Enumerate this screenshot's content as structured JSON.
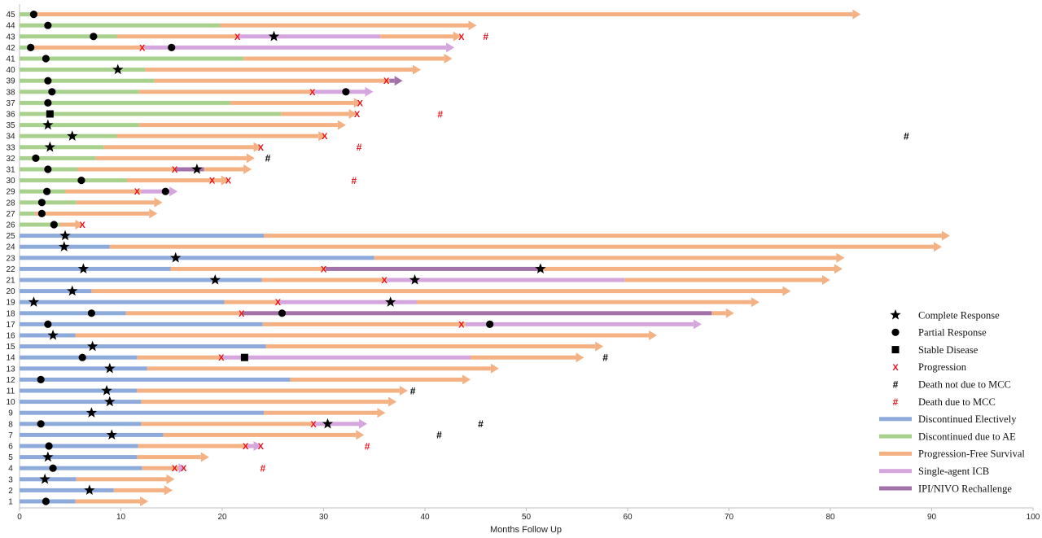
{
  "chart_data": {
    "type": "swimmer",
    "xlabel": "Months Follow Up",
    "xlim": [
      0,
      100
    ],
    "xticks": [
      0,
      10,
      20,
      30,
      40,
      50,
      60,
      70,
      80,
      90,
      100
    ],
    "colors": {
      "electively": "#8eaadb",
      "ae": "#a9d18e",
      "pfs": "#f4b183",
      "single": "#d5a6de",
      "ipinivo": "#a272a8",
      "mark": "#000000",
      "mcc": "#e8141c"
    },
    "legend": [
      {
        "key": "cr",
        "label": "Complete Response"
      },
      {
        "key": "pr",
        "label": "Partial Response"
      },
      {
        "key": "sd",
        "label": "Stable Disease"
      },
      {
        "key": "prog",
        "label": "Progression"
      },
      {
        "key": "dnm",
        "label": "Death not due to MCC"
      },
      {
        "key": "dm",
        "label": "Death due to MCC"
      },
      {
        "key": "electively",
        "label": "Discontinued Electively"
      },
      {
        "key": "ae",
        "label": "Discontinued due to AE"
      },
      {
        "key": "pfs",
        "label": "Progression-Free Survival"
      },
      {
        "key": "single",
        "label": "Single-agent ICB"
      },
      {
        "key": "ipinivo",
        "label": "IPI/NIVO Rechallenge"
      }
    ],
    "patients": [
      {
        "id": 1,
        "segs": [
          [
            "electively",
            0,
            5.5
          ],
          [
            "pfs",
            5.5,
            12.7
          ]
        ],
        "resp": [
          "pr",
          2.6
        ],
        "prog": [],
        "death": null
      },
      {
        "id": 2,
        "segs": [
          [
            "electively",
            0,
            9.3
          ],
          [
            "pfs",
            9.3,
            15.1
          ]
        ],
        "resp": [
          "cr",
          6.9
        ],
        "prog": [],
        "death": null
      },
      {
        "id": 3,
        "segs": [
          [
            "electively",
            0,
            5.6
          ],
          [
            "pfs",
            5.6,
            15.3
          ]
        ],
        "resp": [
          "cr",
          2.5
        ],
        "prog": [],
        "death": null
      },
      {
        "id": 4,
        "segs": [
          [
            "electively",
            0,
            12.1
          ],
          [
            "pfs",
            12.1,
            15.7
          ],
          [
            "single",
            15.7,
            16.4
          ]
        ],
        "resp": [
          "pr",
          3.3
        ],
        "prog": [
          15.3,
          16.2
        ],
        "death": [
          "mcc",
          24.0
        ]
      },
      {
        "id": 5,
        "segs": [
          [
            "electively",
            0,
            11.6
          ],
          [
            "pfs",
            11.6,
            18.7
          ]
        ],
        "resp": [
          "cr",
          2.8
        ],
        "prog": [],
        "death": null
      },
      {
        "id": 6,
        "segs": [
          [
            "electively",
            0,
            11.7
          ],
          [
            "pfs",
            11.7,
            22.5
          ],
          [
            "single",
            22.5,
            23.9
          ]
        ],
        "resp": [
          "pr",
          2.9
        ],
        "prog": [
          22.3,
          23.8
        ],
        "death": [
          "mcc",
          34.3
        ]
      },
      {
        "id": 7,
        "segs": [
          [
            "electively",
            0,
            14.2
          ],
          [
            "pfs",
            14.2,
            34.0
          ]
        ],
        "resp": [
          "cr",
          9.1
        ],
        "prog": [],
        "death": [
          "other",
          41.4
        ]
      },
      {
        "id": 8,
        "segs": [
          [
            "electively",
            0,
            12.0
          ],
          [
            "pfs",
            12.0,
            29.0
          ],
          [
            "single",
            29.0,
            34.3
          ]
        ],
        "resp": [
          "pr",
          2.1
        ],
        "prog": [
          29.0
        ],
        "death": [
          "other",
          45.5
        ],
        "resp2": [
          "cr",
          30.4
        ]
      },
      {
        "id": 9,
        "segs": [
          [
            "electively",
            0,
            24.1
          ],
          [
            "pfs",
            24.1,
            36.1
          ]
        ],
        "resp": [
          "cr",
          7.1
        ],
        "prog": [],
        "death": null
      },
      {
        "id": 10,
        "segs": [
          [
            "electively",
            0,
            12.0
          ],
          [
            "pfs",
            12.0,
            37.2
          ]
        ],
        "resp": [
          "cr",
          8.9
        ],
        "prog": [],
        "death": null
      },
      {
        "id": 11,
        "segs": [
          [
            "electively",
            0,
            11.6
          ],
          [
            "pfs",
            11.6,
            38.3
          ]
        ],
        "resp": [
          "cr",
          8.6
        ],
        "prog": [],
        "death": [
          "other",
          38.8
        ]
      },
      {
        "id": 12,
        "segs": [
          [
            "electively",
            0,
            26.7
          ],
          [
            "pfs",
            26.7,
            44.5
          ]
        ],
        "resp": [
          "pr",
          2.1
        ],
        "prog": [],
        "death": null
      },
      {
        "id": 13,
        "segs": [
          [
            "electively",
            0,
            12.6
          ],
          [
            "pfs",
            12.6,
            47.3
          ]
        ],
        "resp": [
          "cr",
          8.9
        ],
        "prog": [],
        "death": null
      },
      {
        "id": 14,
        "segs": [
          [
            "electively",
            0,
            11.6
          ],
          [
            "pfs",
            11.6,
            20.0
          ],
          [
            "single",
            20.0,
            44.5
          ],
          [
            "pfs",
            44.5,
            55.7
          ]
        ],
        "resp": [
          "pr",
          6.2
        ],
        "prog": [
          19.9
        ],
        "death": [
          "other",
          57.8
        ],
        "resp2": [
          "sd",
          22.2
        ]
      },
      {
        "id": 15,
        "segs": [
          [
            "electively",
            0,
            24.3
          ],
          [
            "pfs",
            24.3,
            57.6
          ]
        ],
        "resp": [
          "cr",
          7.2
        ],
        "prog": [],
        "death": null
      },
      {
        "id": 16,
        "segs": [
          [
            "electively",
            0,
            5.5
          ],
          [
            "pfs",
            5.5,
            62.9
          ]
        ],
        "resp": [
          "cr",
          3.3
        ],
        "prog": [],
        "death": null
      },
      {
        "id": 17,
        "segs": [
          [
            "electively",
            0,
            24.0
          ],
          [
            "pfs",
            24.0,
            44.0
          ],
          [
            "single",
            44.0,
            67.3
          ]
        ],
        "resp": [
          "pr",
          2.8
        ],
        "prog": [
          43.6
        ],
        "death": null,
        "resp2": [
          "pr",
          46.4
        ]
      },
      {
        "id": 18,
        "segs": [
          [
            "electively",
            0,
            10.5
          ],
          [
            "pfs",
            10.5,
            22.0
          ],
          [
            "ipinivo",
            22.0,
            68.3
          ],
          [
            "pfs",
            68.3,
            70.5
          ]
        ],
        "resp": [
          "pr",
          7.1
        ],
        "prog": [
          21.9
        ],
        "death": null,
        "resp2": [
          "pr",
          25.9
        ]
      },
      {
        "id": 19,
        "segs": [
          [
            "electively",
            0,
            20.2
          ],
          [
            "pfs",
            20.2,
            25.6
          ],
          [
            "single",
            25.6,
            39.2
          ],
          [
            "pfs",
            39.2,
            73.0
          ]
        ],
        "resp": [
          "cr",
          1.4
        ],
        "prog": [
          25.5
        ],
        "death": null,
        "resp2": [
          "cr",
          36.6
        ]
      },
      {
        "id": 20,
        "segs": [
          [
            "electively",
            0,
            7.1
          ],
          [
            "pfs",
            7.1,
            76.1
          ]
        ],
        "resp": [
          "cr",
          5.2
        ],
        "prog": [],
        "death": null
      },
      {
        "id": 21,
        "segs": [
          [
            "electively",
            0,
            23.9
          ],
          [
            "pfs",
            23.9,
            36.2
          ],
          [
            "single",
            36.2,
            59.7
          ],
          [
            "pfs",
            59.7,
            80.0
          ]
        ],
        "resp": [
          "cr",
          19.3
        ],
        "prog": [
          36.0
        ],
        "death": null,
        "resp2": [
          "cr",
          39.0
        ]
      },
      {
        "id": 22,
        "segs": [
          [
            "electively",
            0,
            14.9
          ],
          [
            "pfs",
            14.9,
            30.2
          ],
          [
            "ipinivo",
            30.2,
            51.4
          ],
          [
            "pfs",
            51.4,
            81.2
          ]
        ],
        "resp": [
          "cr",
          6.3
        ],
        "prog": [
          30.0
        ],
        "death": null,
        "resp2": [
          "cr",
          51.4
        ]
      },
      {
        "id": 23,
        "segs": [
          [
            "electively",
            0,
            35.0
          ],
          [
            "pfs",
            35.0,
            81.4
          ]
        ],
        "resp": [
          "cr",
          15.4
        ],
        "prog": [],
        "death": null
      },
      {
        "id": 24,
        "segs": [
          [
            "electively",
            0,
            8.9
          ],
          [
            "pfs",
            8.9,
            91.0
          ]
        ],
        "resp": [
          "cr",
          4.4
        ],
        "prog": [],
        "death": null
      },
      {
        "id": 25,
        "segs": [
          [
            "electively",
            0,
            24.1
          ],
          [
            "pfs",
            24.1,
            91.8
          ]
        ],
        "resp": [
          "cr",
          4.5
        ],
        "prog": [],
        "death": null
      },
      {
        "id": 26,
        "segs": [
          [
            "ae",
            0,
            4.0
          ],
          [
            "pfs",
            4.0,
            6.3
          ]
        ],
        "resp": [
          "pr",
          3.4
        ],
        "prog": [
          6.2
        ],
        "death": null
      },
      {
        "id": 27,
        "segs": [
          [
            "ae",
            0,
            1.5
          ],
          [
            "pfs",
            1.5,
            13.6
          ]
        ],
        "resp": [
          "pr",
          2.2
        ],
        "prog": [],
        "death": null
      },
      {
        "id": 28,
        "segs": [
          [
            "ae",
            0,
            5.6
          ],
          [
            "pfs",
            5.6,
            14.1
          ]
        ],
        "resp": [
          "pr",
          2.2
        ],
        "prog": [],
        "death": null
      },
      {
        "id": 29,
        "segs": [
          [
            "ae",
            0,
            4.5
          ],
          [
            "pfs",
            4.5,
            12.0
          ],
          [
            "single",
            12.0,
            15.6
          ]
        ],
        "resp": [
          "pr",
          2.7
        ],
        "prog": [
          11.6
        ],
        "death": null,
        "resp2": [
          "pr",
          14.4
        ]
      },
      {
        "id": 30,
        "segs": [
          [
            "ae",
            0,
            10.6
          ],
          [
            "pfs",
            10.6,
            20.7
          ]
        ],
        "resp": [
          "pr",
          6.1
        ],
        "prog": [
          19.0,
          20.6
        ],
        "death": [
          "mcc",
          33.0
        ]
      },
      {
        "id": 31,
        "segs": [
          [
            "ae",
            0,
            5.7
          ],
          [
            "pfs",
            5.7,
            15.4
          ],
          [
            "ipinivo",
            15.4,
            18.2
          ],
          [
            "pfs",
            18.2,
            22.9
          ]
        ],
        "resp": [
          "pr",
          2.8
        ],
        "prog": [
          15.3
        ],
        "death": null,
        "resp2": [
          "cr",
          17.5
        ]
      },
      {
        "id": 32,
        "segs": [
          [
            "ae",
            0,
            7.5
          ],
          [
            "pfs",
            7.5,
            23.2
          ]
        ],
        "resp": [
          "pr",
          1.6
        ],
        "prog": [],
        "death": [
          "other",
          24.5
        ]
      },
      {
        "id": 33,
        "segs": [
          [
            "ae",
            0,
            8.3
          ],
          [
            "pfs",
            8.3,
            23.9
          ]
        ],
        "resp": [
          "cr",
          3.0
        ],
        "prog": [
          23.8
        ],
        "death": [
          "mcc",
          33.5
        ]
      },
      {
        "id": 34,
        "segs": [
          [
            "ae",
            0,
            9.6
          ],
          [
            "pfs",
            9.6,
            30.3
          ]
        ],
        "resp": [
          "cr",
          5.2
        ],
        "prog": [
          30.1
        ],
        "death": [
          "other",
          87.5
        ]
      },
      {
        "id": 35,
        "segs": [
          [
            "ae",
            0,
            11.8
          ],
          [
            "pfs",
            11.8,
            32.2
          ]
        ],
        "resp": [
          "cr",
          2.8
        ],
        "prog": [],
        "death": null
      },
      {
        "id": 36,
        "segs": [
          [
            "ae",
            0,
            25.8
          ],
          [
            "pfs",
            25.8,
            33.3
          ]
        ],
        "resp": [
          "sd",
          3.0
        ],
        "prog": [
          33.3
        ],
        "death": [
          "mcc",
          41.5
        ]
      },
      {
        "id": 37,
        "segs": [
          [
            "ae",
            0,
            20.8
          ],
          [
            "pfs",
            20.8,
            33.8
          ]
        ],
        "resp": [
          "pr",
          2.8
        ],
        "prog": [
          33.6
        ],
        "death": null
      },
      {
        "id": 38,
        "segs": [
          [
            "ae",
            0,
            11.8
          ],
          [
            "pfs",
            11.8,
            29.0
          ],
          [
            "single",
            29.0,
            34.9
          ]
        ],
        "resp": [
          "pr",
          3.2
        ],
        "prog": [
          28.9
        ],
        "death": null,
        "resp2": [
          "pr",
          32.2
        ]
      },
      {
        "id": 39,
        "segs": [
          [
            "ae",
            0,
            13.3
          ],
          [
            "pfs",
            13.3,
            36.5
          ],
          [
            "ipinivo",
            36.5,
            37.8
          ]
        ],
        "resp": [
          "pr",
          2.8
        ],
        "prog": [
          36.2
        ],
        "death": null
      },
      {
        "id": 40,
        "segs": [
          [
            "ae",
            0,
            12.4
          ],
          [
            "pfs",
            12.4,
            39.6
          ]
        ],
        "resp": [
          "cr",
          9.7
        ],
        "prog": [],
        "death": null
      },
      {
        "id": 41,
        "segs": [
          [
            "ae",
            0,
            22.1
          ],
          [
            "pfs",
            22.1,
            42.7
          ]
        ],
        "resp": [
          "pr",
          2.6
        ],
        "prog": [],
        "death": null
      },
      {
        "id": 42,
        "segs": [
          [
            "ae",
            0,
            1.0
          ],
          [
            "pfs",
            1.0,
            12.3
          ],
          [
            "single",
            12.3,
            42.9
          ]
        ],
        "resp": [
          "pr",
          1.1
        ],
        "prog": [
          12.1
        ],
        "death": null,
        "resp2": [
          "pr",
          15.0
        ]
      },
      {
        "id": 43,
        "segs": [
          [
            "ae",
            0,
            9.6
          ],
          [
            "pfs",
            9.6,
            21.5
          ],
          [
            "single",
            21.5,
            35.6
          ],
          [
            "pfs",
            35.6,
            43.6
          ]
        ],
        "resp": [
          "pr",
          7.3
        ],
        "prog": [
          21.5,
          43.6
        ],
        "death": [
          "mcc",
          46.0
        ],
        "resp2": [
          "cr",
          25.1
        ]
      },
      {
        "id": 44,
        "segs": [
          [
            "ae",
            0,
            19.8
          ],
          [
            "pfs",
            19.8,
            45.1
          ]
        ],
        "resp": [
          "pr",
          2.8
        ],
        "prog": [],
        "death": null
      },
      {
        "id": 45,
        "segs": [
          [
            "ae",
            0,
            1.2
          ],
          [
            "pfs",
            1.2,
            83.0
          ]
        ],
        "resp": [
          "pr",
          1.4
        ],
        "prog": [],
        "death": null
      }
    ]
  }
}
